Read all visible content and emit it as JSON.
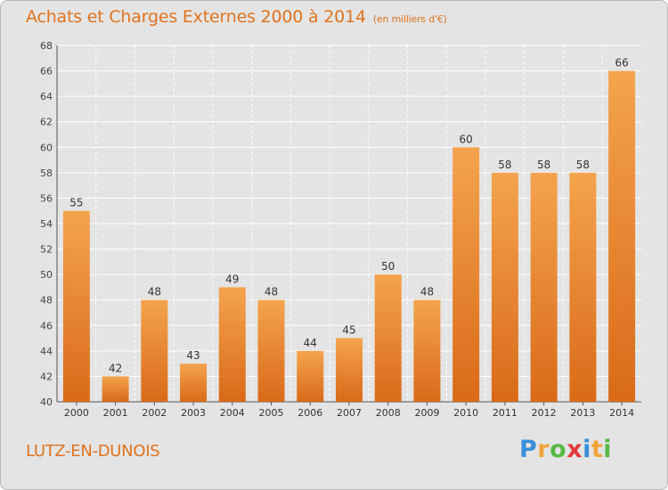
{
  "title": "Achats et Charges Externes 2000 à 2014",
  "unit": "(en milliers d'€)",
  "commune": "LUTZ-EN-DUNOIS",
  "logo": {
    "letters": [
      "P",
      "r",
      "o",
      "x",
      "i",
      "t",
      "i"
    ],
    "colors": [
      "#3a8fd8",
      "#f2a43a",
      "#58b947",
      "#e23a3a",
      "#3a8fd8",
      "#f2a43a",
      "#58b947"
    ]
  },
  "colors": {
    "accent": "#e0731f",
    "bar_top": "#f4a44e",
    "bar_bottom": "#d96a17",
    "background": "#e4e4e4"
  },
  "chart_data": {
    "type": "bar",
    "title": "Achats et Charges Externes 2000 à 2014",
    "categories": [
      "2000",
      "2001",
      "2002",
      "2003",
      "2004",
      "2005",
      "2006",
      "2007",
      "2008",
      "2009",
      "2010",
      "2011",
      "2012",
      "2013",
      "2014"
    ],
    "values": [
      55,
      42,
      48,
      43,
      49,
      48,
      44,
      45,
      50,
      48,
      60,
      58,
      58,
      58,
      66
    ],
    "ylim": [
      40,
      68
    ],
    "yticks": [
      40,
      42,
      44,
      46,
      48,
      50,
      52,
      54,
      56,
      58,
      60,
      62,
      64,
      66,
      68
    ],
    "grid": true,
    "data_labels": true
  }
}
